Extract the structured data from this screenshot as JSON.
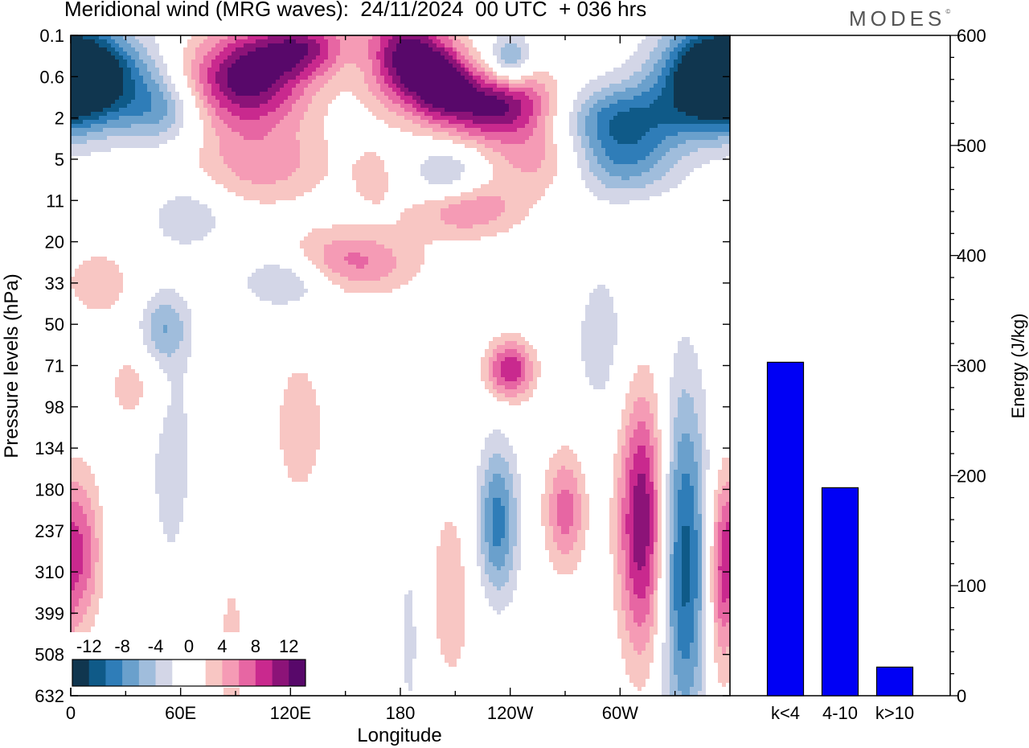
{
  "title": "Meridional wind (MRG waves):  24/11/2024  00 UTC  + 036 hrs",
  "brand": "MODES",
  "brand_mark": "©",
  "colors": {
    "neg": [
      "#10364f",
      "#0f5a88",
      "#2f7db8",
      "#6aa0cc",
      "#a0bddc",
      "#d3d6e7"
    ],
    "pos": [
      "#f8c6c3",
      "#f59bb5",
      "#e766a3",
      "#c9298e",
      "#8c1378",
      "#58086a"
    ],
    "bar": "#0000f5"
  },
  "chart_data": [
    {
      "type": "heatmap",
      "title": "Meridional wind (MRG waves):  24/11/2024  00 UTC  + 036 hrs",
      "xlabel": "Longitude",
      "ylabel": "Pressure levels (hPa)",
      "x_ticks": [
        "0",
        "60E",
        "120E",
        "180",
        "120W",
        "60W"
      ],
      "x_tick_values": [
        0,
        60,
        120,
        180,
        240,
        300
      ],
      "x_range": [
        0,
        360
      ],
      "y_ticks": [
        "0.1",
        "0.6",
        "2",
        "5",
        "11",
        "20",
        "33",
        "50",
        "71",
        "98",
        "134",
        "180",
        "237",
        "310",
        "399",
        "508",
        "632"
      ],
      "colorbar": {
        "tick_labels": [
          "-12",
          "-8",
          "-4",
          "0",
          "4",
          "8",
          "12"
        ],
        "levels": [
          -14,
          -12,
          -10,
          -8,
          -6,
          -4,
          -2,
          2,
          4,
          6,
          8,
          10,
          12,
          14
        ]
      },
      "features": [
        {
          "sign": "neg",
          "lon": 5,
          "lev": 1.0,
          "amp": 12,
          "dlon": 28,
          "dlev": 0.85
        },
        {
          "sign": "neg",
          "lon": 50,
          "lev": 1.8,
          "amp": 6,
          "dlon": 16,
          "dlev": 0.6
        },
        {
          "sign": "neg",
          "lon": 355,
          "lev": 1.0,
          "amp": 12,
          "dlon": 20,
          "dlev": 0.85
        },
        {
          "sign": "pos",
          "lon": 95,
          "lev": 1.1,
          "amp": 13,
          "dlon": 24,
          "dlev": 0.8
        },
        {
          "sign": "pos",
          "lon": 183,
          "lev": 0.5,
          "amp": 14,
          "dlon": 16,
          "dlev": 0.8
        },
        {
          "sign": "pos",
          "lon": 203,
          "lev": 1.1,
          "amp": 9,
          "dlon": 11,
          "dlev": 0.55
        },
        {
          "sign": "pos",
          "lon": 232,
          "lev": 1.7,
          "amp": 13,
          "dlon": 24,
          "dlev": 0.6
        },
        {
          "sign": "pos",
          "lon": 132,
          "lev": 0.3,
          "amp": 11,
          "dlon": 22,
          "dlev": 0.5
        },
        {
          "sign": "neg",
          "lon": 155,
          "lev": 0.4,
          "amp": 5,
          "dlon": 18,
          "dlev": 0.5
        },
        {
          "sign": "neg",
          "lon": 240,
          "lev": 0.6,
          "amp": 7,
          "dlon": 8,
          "dlev": 0.45
        },
        {
          "sign": "neg",
          "lon": 300,
          "lev": 2.0,
          "amp": 9,
          "dlon": 26,
          "dlev": 0.6
        },
        {
          "sign": "neg",
          "lon": 300,
          "lev": 3.1,
          "amp": 7,
          "dlon": 22,
          "dlev": 0.6
        },
        {
          "sign": "pos",
          "lon": 258,
          "lev": 3.0,
          "amp": 5,
          "dlon": 20,
          "dlev": 0.6
        },
        {
          "sign": "pos",
          "lon": 105,
          "lev": 3.1,
          "amp": 5,
          "dlon": 26,
          "dlev": 0.7
        },
        {
          "sign": "pos",
          "lon": 165,
          "lev": 3.4,
          "amp": 3,
          "dlon": 8,
          "dlev": 0.5
        },
        {
          "sign": "neg",
          "lon": 205,
          "lev": 3.4,
          "amp": 5,
          "dlon": 14,
          "dlev": 0.5
        },
        {
          "sign": "pos",
          "lon": 215,
          "lev": 4.2,
          "amp": 6,
          "dlon": 22,
          "dlev": 0.5
        },
        {
          "sign": "neg",
          "lon": 65,
          "lev": 4.4,
          "amp": 4,
          "dlon": 14,
          "dlev": 0.5
        },
        {
          "sign": "pos",
          "lon": 150,
          "lev": 5.5,
          "amp": 7,
          "dlon": 26,
          "dlev": 0.55
        },
        {
          "sign": "neg",
          "lon": 120,
          "lev": 5.9,
          "amp": 6,
          "dlon": 18,
          "dlev": 0.5
        },
        {
          "sign": "pos",
          "lon": 15,
          "lev": 6.0,
          "amp": 3,
          "dlon": 16,
          "dlev": 0.7
        },
        {
          "sign": "neg",
          "lon": 50,
          "lev": 7.1,
          "amp": 5,
          "dlon": 10,
          "dlev": 0.6
        },
        {
          "sign": "pos",
          "lon": 240,
          "lev": 8.1,
          "amp": 10,
          "dlon": 9,
          "dlev": 0.5
        },
        {
          "sign": "pos",
          "lon": 312,
          "lev": 11.8,
          "amp": 12,
          "dlon": 9,
          "dlev": 2.2
        },
        {
          "sign": "neg",
          "lon": 335,
          "lev": 12.8,
          "amp": 11,
          "dlon": 9,
          "dlev": 3.0
        },
        {
          "sign": "neg",
          "lon": 233,
          "lev": 11.8,
          "amp": 9,
          "dlon": 8,
          "dlev": 1.3
        },
        {
          "sign": "pos",
          "lon": 270,
          "lev": 11.5,
          "amp": 7,
          "dlon": 8,
          "dlev": 1.0
        },
        {
          "sign": "pos",
          "lon": 5,
          "lev": 12.5,
          "amp": 8,
          "dlon": 8,
          "dlev": 1.3
        },
        {
          "sign": "pos",
          "lon": 355,
          "lev": 13.3,
          "amp": 6,
          "dlon": 5,
          "dlev": 1.8
        },
        {
          "sign": "pos",
          "lon": 208,
          "lev": 13.5,
          "amp": 3,
          "dlon": 10,
          "dlev": 2.0
        },
        {
          "sign": "neg",
          "lon": 55,
          "lev": 10.0,
          "amp": 3,
          "dlon": 10,
          "dlev": 2.5
        },
        {
          "sign": "pos",
          "lon": 125,
          "lev": 9.5,
          "amp": 3,
          "dlon": 12,
          "dlev": 1.5
        },
        {
          "sign": "pos",
          "lon": 88,
          "lev": 15.0,
          "amp": 4,
          "dlon": 4,
          "dlev": 1.2
        },
        {
          "sign": "neg",
          "lon": 185,
          "lev": 14.6,
          "amp": 3,
          "dlon": 4,
          "dlev": 1.5
        },
        {
          "sign": "neg",
          "lon": 290,
          "lev": 7.4,
          "amp": 3,
          "dlon": 12,
          "dlev": 1.5
        },
        {
          "sign": "pos",
          "lon": 35,
          "lev": 8.5,
          "amp": 3,
          "dlon": 12,
          "dlev": 0.8
        }
      ]
    },
    {
      "type": "bar",
      "categories": [
        "k<4",
        "4-10",
        "k>10"
      ],
      "values": [
        303,
        189,
        26
      ],
      "ylabel": "Energy (J/kg)",
      "ylim": [
        0,
        600
      ],
      "y_ticks": [
        0,
        100,
        200,
        300,
        400,
        500,
        600
      ]
    }
  ]
}
